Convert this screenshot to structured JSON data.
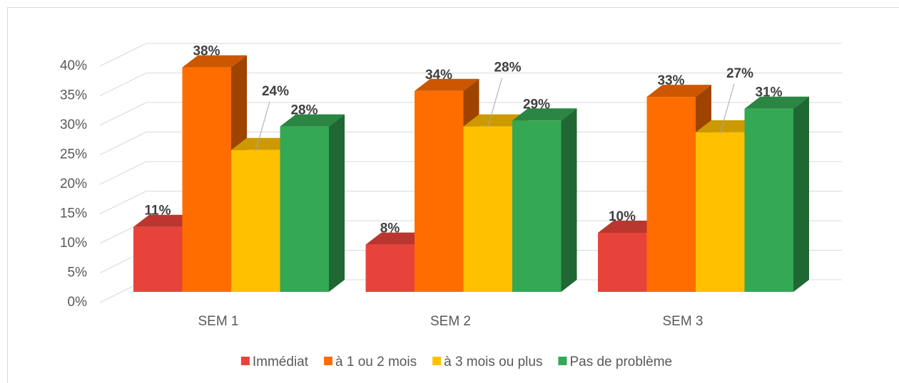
{
  "chart_data": {
    "type": "bar3d",
    "categories": [
      "SEM 1",
      "SEM 2",
      "SEM 3"
    ],
    "series": [
      {
        "name": "Immédiat",
        "color": "#e8433a",
        "values": [
          11,
          8,
          10
        ],
        "value_labels": [
          "11%",
          "8%",
          "10%"
        ]
      },
      {
        "name": "à 1 ou 2 mois",
        "color": "#ff6d00",
        "values": [
          38,
          34,
          33
        ],
        "value_labels": [
          "38%",
          "34%",
          "33%"
        ]
      },
      {
        "name": "à 3 mois ou plus",
        "color": "#ffc000",
        "values": [
          24,
          28,
          27
        ],
        "value_labels": [
          "24%",
          "28%",
          "27%"
        ]
      },
      {
        "name": "Pas de problème",
        "color": "#34a853",
        "values": [
          28,
          29,
          31
        ],
        "value_labels": [
          "28%",
          "29%",
          "31%"
        ]
      }
    ],
    "ylim": [
      0,
      40
    ],
    "yticks": [
      {
        "value": 0,
        "label": "0%"
      },
      {
        "value": 5,
        "label": "5%"
      },
      {
        "value": 10,
        "label": "10%"
      },
      {
        "value": 15,
        "label": "15%"
      },
      {
        "value": 20,
        "label": "20%"
      },
      {
        "value": 25,
        "label": "25%"
      },
      {
        "value": 30,
        "label": "30%"
      },
      {
        "value": 35,
        "label": "35%"
      },
      {
        "value": 40,
        "label": "40%"
      }
    ],
    "grid": true,
    "legend": "bottom"
  }
}
